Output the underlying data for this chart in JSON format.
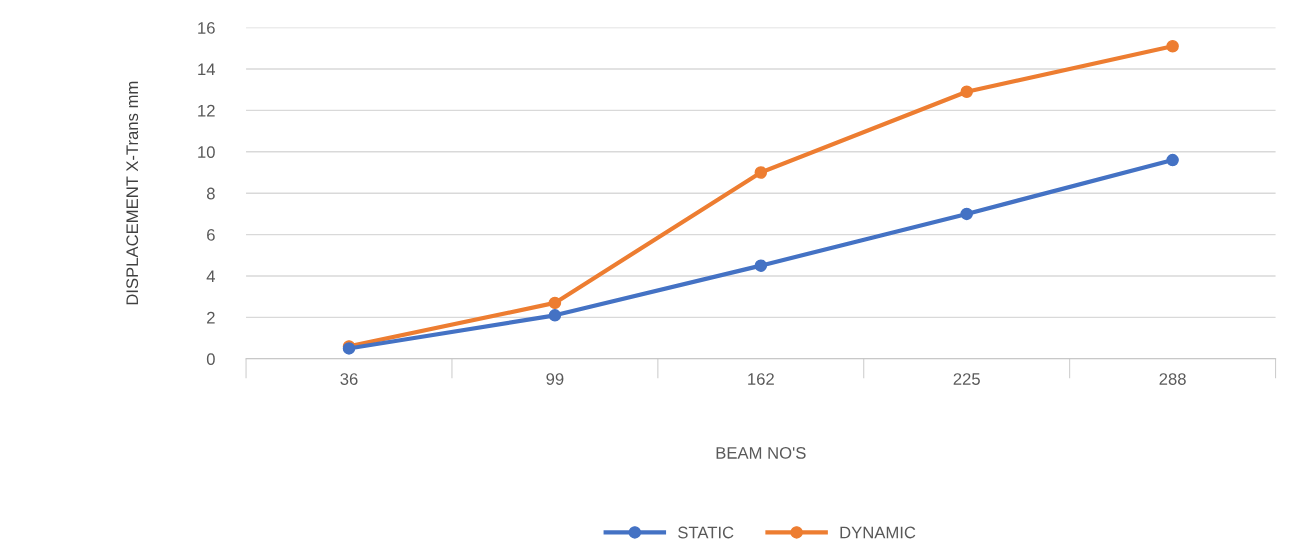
{
  "chart_data": {
    "type": "line",
    "xlabel": "BEAM NO'S",
    "ylabel": "DISPLACEMENT X-Trans mm",
    "categories": [
      "36",
      "99",
      "162",
      "225",
      "288"
    ],
    "series": [
      {
        "name": "STATIC",
        "color": "#4472c4",
        "values": [
          0.5,
          2.1,
          4.5,
          7.0,
          9.6
        ]
      },
      {
        "name": "DYNAMIC",
        "color": "#ed7d31",
        "values": [
          0.6,
          2.7,
          9.0,
          12.9,
          15.1
        ]
      }
    ],
    "ylim": [
      0,
      16
    ],
    "yticks": [
      0,
      2,
      4,
      6,
      8,
      10,
      12,
      14,
      16
    ],
    "grid": "y",
    "legend": "bottom",
    "marker": "circle",
    "line_style": "solid"
  }
}
